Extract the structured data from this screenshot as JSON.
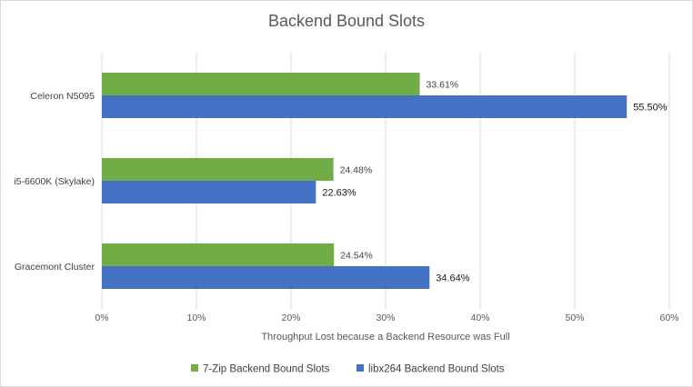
{
  "chart_data": {
    "type": "bar",
    "orientation": "horizontal",
    "title": "Backend Bound Slots",
    "xlabel": "Throughput Lost because a Backend Resource was Full",
    "ylabel": "",
    "xlim": [
      0,
      60
    ],
    "x_ticks": [
      "0%",
      "10%",
      "20%",
      "30%",
      "40%",
      "50%",
      "60%"
    ],
    "grid": "vertical",
    "legend_position": "bottom",
    "categories": [
      "Celeron N5095",
      "i5-6600K (Skylake)",
      "Gracemont Cluster"
    ],
    "series": [
      {
        "name": "7-Zip Backend Bound Slots",
        "color": "#70ad47",
        "values": [
          33.61,
          24.48,
          24.54
        ],
        "labels": [
          "33.61%",
          "24.48%",
          "24.54%"
        ]
      },
      {
        "name": "libx264 Backend Bound Slots",
        "color": "#4472c4",
        "values": [
          55.5,
          22.63,
          34.64
        ],
        "labels": [
          "55.50%",
          "22.63%",
          "34.64%"
        ]
      }
    ]
  }
}
